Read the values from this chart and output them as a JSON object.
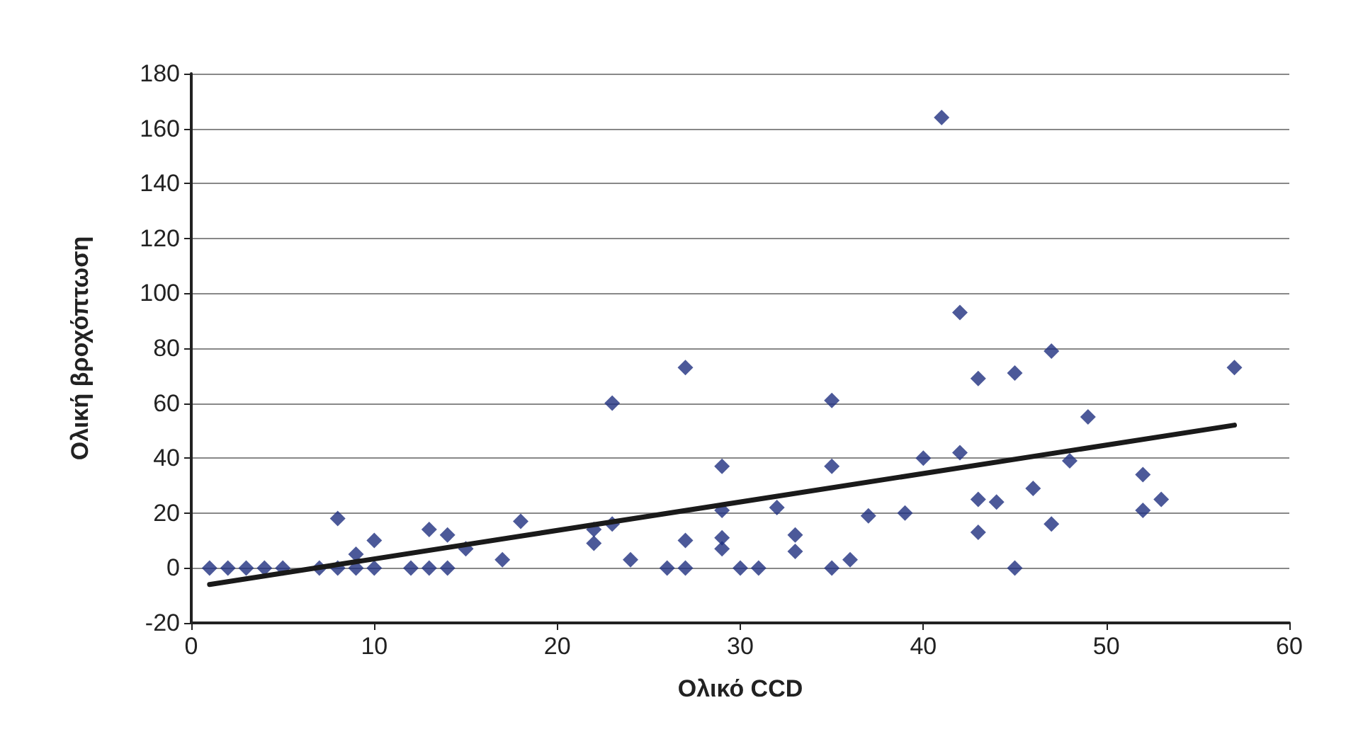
{
  "chart_data": {
    "type": "scatter",
    "xlabel": "Ολικό CCD",
    "ylabel": "Ολική βροχόπτωση",
    "xlim": [
      0,
      60
    ],
    "xticks": [
      0,
      10,
      20,
      30,
      40,
      50,
      60
    ],
    "ylim": [
      -20,
      180
    ],
    "yticks": [
      -20,
      0,
      20,
      40,
      60,
      80,
      100,
      120,
      140,
      160,
      180
    ],
    "grid": "y",
    "marker": "diamond",
    "series": [
      {
        "color": "#1f2f80",
        "x": [
          1,
          2,
          3,
          4,
          5,
          7,
          8,
          8,
          9,
          9,
          10,
          10,
          12,
          13,
          13,
          14,
          14,
          15,
          17,
          18,
          22,
          22,
          23,
          23,
          24,
          26,
          27,
          27,
          27,
          29,
          29,
          29,
          29,
          30,
          31,
          32,
          33,
          33,
          35,
          35,
          35,
          36,
          37,
          39,
          40,
          41,
          42,
          42,
          43,
          43,
          43,
          44,
          45,
          45,
          46,
          47,
          47,
          48,
          49,
          52,
          52,
          53,
          57
        ],
        "values": [
          0,
          0,
          0,
          0,
          0,
          0,
          18,
          0,
          5,
          0,
          10,
          0,
          0,
          14,
          0,
          12,
          0,
          7,
          3,
          17,
          14,
          9,
          60,
          16,
          3,
          0,
          73,
          10,
          0,
          37,
          21,
          11,
          7,
          0,
          0,
          22,
          12,
          6,
          61,
          37,
          0,
          3,
          19,
          20,
          40,
          164,
          93,
          42,
          69,
          25,
          13,
          24,
          71,
          0,
          29,
          79,
          16,
          39,
          55,
          34,
          21,
          25,
          73
        ]
      },
      {
        "type": "line",
        "color": "#1a1a1a",
        "marker": "none",
        "line_style": "solid",
        "x": [
          1,
          57
        ],
        "values": [
          -6,
          52
        ]
      }
    ]
  }
}
